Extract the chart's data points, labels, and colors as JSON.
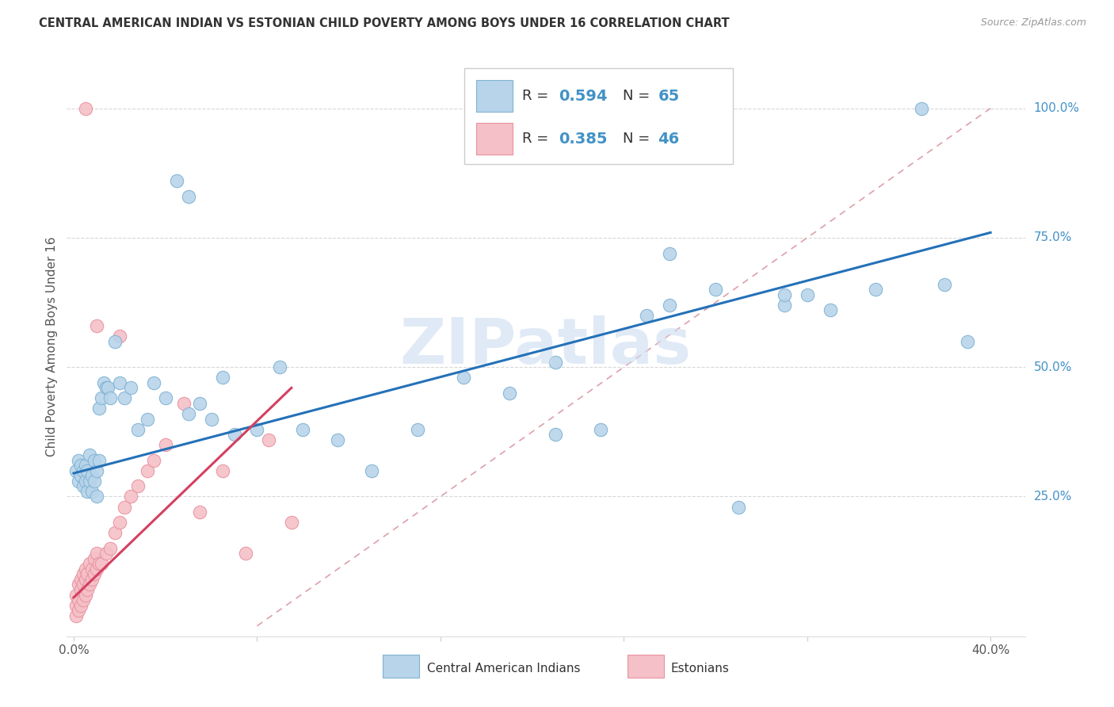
{
  "title": "CENTRAL AMERICAN INDIAN VS ESTONIAN CHILD POVERTY AMONG BOYS UNDER 16 CORRELATION CHART",
  "source": "Source: ZipAtlas.com",
  "ylabel": "Child Poverty Among Boys Under 16",
  "xlim": [
    -0.003,
    0.415
  ],
  "ylim": [
    -0.02,
    1.1
  ],
  "xtick_positions": [
    0.0,
    0.08,
    0.16,
    0.24,
    0.32,
    0.4
  ],
  "xtick_labels": [
    "0.0%",
    "",
    "",
    "",
    "",
    "40.0%"
  ],
  "ytick_positions": [
    0.25,
    0.5,
    0.75,
    1.0
  ],
  "ytick_labels": [
    "25.0%",
    "50.0%",
    "75.0%",
    "100.0%"
  ],
  "color_blue_fill": "#b8d4ea",
  "color_blue_edge": "#7fb3d3",
  "color_pink_fill": "#f5c0c8",
  "color_pink_edge": "#e8929f",
  "color_trend_blue": "#2471b8",
  "color_trend_pink": "#d44060",
  "color_refline": "#dda0aa",
  "color_grid": "#d8d8d8",
  "color_ytick": "#4292c6",
  "color_title": "#333333",
  "color_source": "#999999",
  "color_watermark": "#ccddf0",
  "watermark": "ZIPatlas",
  "legend_box_color": "#dddddd",
  "blue_x": [
    0.001,
    0.002,
    0.002,
    0.003,
    0.003,
    0.004,
    0.004,
    0.005,
    0.005,
    0.006,
    0.006,
    0.007,
    0.007,
    0.008,
    0.008,
    0.009,
    0.009,
    0.01,
    0.01,
    0.011,
    0.011,
    0.012,
    0.013,
    0.014,
    0.015,
    0.016,
    0.018,
    0.02,
    0.022,
    0.025,
    0.028,
    0.032,
    0.035,
    0.04,
    0.045,
    0.05,
    0.055,
    0.06,
    0.065,
    0.07,
    0.08,
    0.09,
    0.1,
    0.115,
    0.13,
    0.15,
    0.17,
    0.19,
    0.21,
    0.23,
    0.25,
    0.26,
    0.28,
    0.29,
    0.31,
    0.32,
    0.33,
    0.35,
    0.37,
    0.38,
    0.39,
    0.26,
    0.31,
    0.05,
    0.21
  ],
  "blue_y": [
    0.3,
    0.28,
    0.32,
    0.29,
    0.31,
    0.27,
    0.3,
    0.28,
    0.31,
    0.26,
    0.3,
    0.28,
    0.33,
    0.26,
    0.29,
    0.32,
    0.28,
    0.3,
    0.25,
    0.32,
    0.42,
    0.44,
    0.47,
    0.46,
    0.46,
    0.44,
    0.55,
    0.47,
    0.44,
    0.46,
    0.38,
    0.4,
    0.47,
    0.44,
    0.86,
    0.41,
    0.43,
    0.4,
    0.48,
    0.37,
    0.38,
    0.5,
    0.38,
    0.36,
    0.3,
    0.38,
    0.48,
    0.45,
    0.37,
    0.38,
    0.6,
    0.62,
    0.65,
    0.23,
    0.62,
    0.64,
    0.61,
    0.65,
    1.0,
    0.66,
    0.55,
    0.72,
    0.64,
    0.83,
    0.51
  ],
  "pink_x": [
    0.001,
    0.001,
    0.001,
    0.002,
    0.002,
    0.002,
    0.003,
    0.003,
    0.003,
    0.004,
    0.004,
    0.004,
    0.005,
    0.005,
    0.005,
    0.006,
    0.006,
    0.007,
    0.007,
    0.008,
    0.008,
    0.009,
    0.009,
    0.01,
    0.01,
    0.011,
    0.012,
    0.014,
    0.016,
    0.018,
    0.02,
    0.022,
    0.025,
    0.028,
    0.032,
    0.035,
    0.04,
    0.048,
    0.055,
    0.065,
    0.075,
    0.085,
    0.095,
    0.02,
    0.005,
    0.01
  ],
  "pink_y": [
    0.02,
    0.04,
    0.06,
    0.03,
    0.05,
    0.08,
    0.04,
    0.07,
    0.09,
    0.05,
    0.08,
    0.1,
    0.06,
    0.09,
    0.11,
    0.07,
    0.1,
    0.08,
    0.12,
    0.09,
    0.11,
    0.1,
    0.13,
    0.11,
    0.14,
    0.12,
    0.12,
    0.14,
    0.15,
    0.18,
    0.2,
    0.23,
    0.25,
    0.27,
    0.3,
    0.32,
    0.35,
    0.43,
    0.22,
    0.3,
    0.14,
    0.36,
    0.2,
    0.56,
    1.0,
    0.58
  ],
  "blue_trend_x": [
    0.0,
    0.4
  ],
  "blue_trend_y": [
    0.295,
    0.76
  ],
  "pink_trend_x": [
    0.0,
    0.095
  ],
  "pink_trend_y": [
    0.055,
    0.46
  ]
}
